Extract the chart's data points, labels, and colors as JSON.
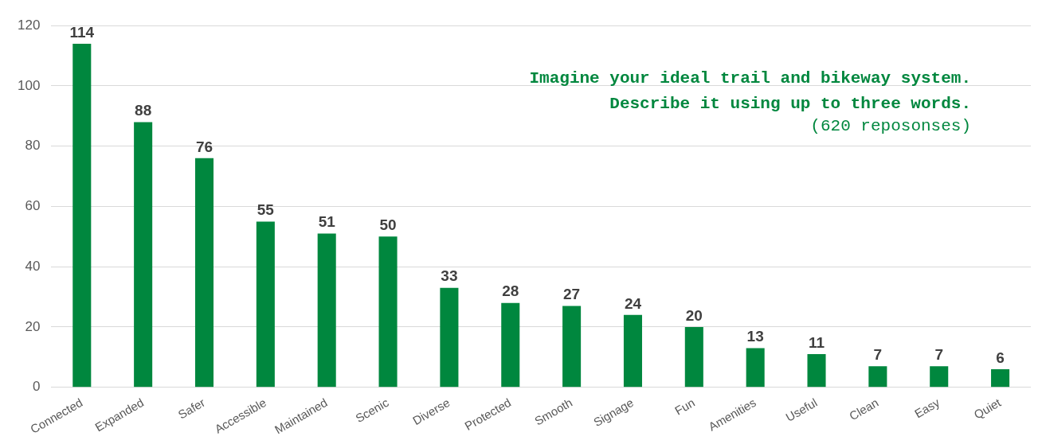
{
  "chart_data": {
    "type": "bar",
    "title": "Imagine your ideal trail and bikeway system. Describe it using up to three words.",
    "subtitle": "(620 reposonses)",
    "categories": [
      "Connected",
      "Expanded",
      "Safer",
      "Accessible",
      "Maintained",
      "Scenic",
      "Diverse",
      "Protected",
      "Smooth",
      "Signage",
      "Fun",
      "Amenities",
      "Useful",
      "Clean",
      "Easy",
      "Quiet"
    ],
    "values": [
      114,
      88,
      76,
      55,
      51,
      50,
      33,
      28,
      27,
      24,
      20,
      13,
      11,
      7,
      7,
      6
    ],
    "color": "#00873e",
    "ylim": [
      0,
      120
    ],
    "yticks": [
      0,
      20,
      40,
      60,
      80,
      100,
      120
    ],
    "grid": "y",
    "data_labels": true,
    "legend": false
  }
}
